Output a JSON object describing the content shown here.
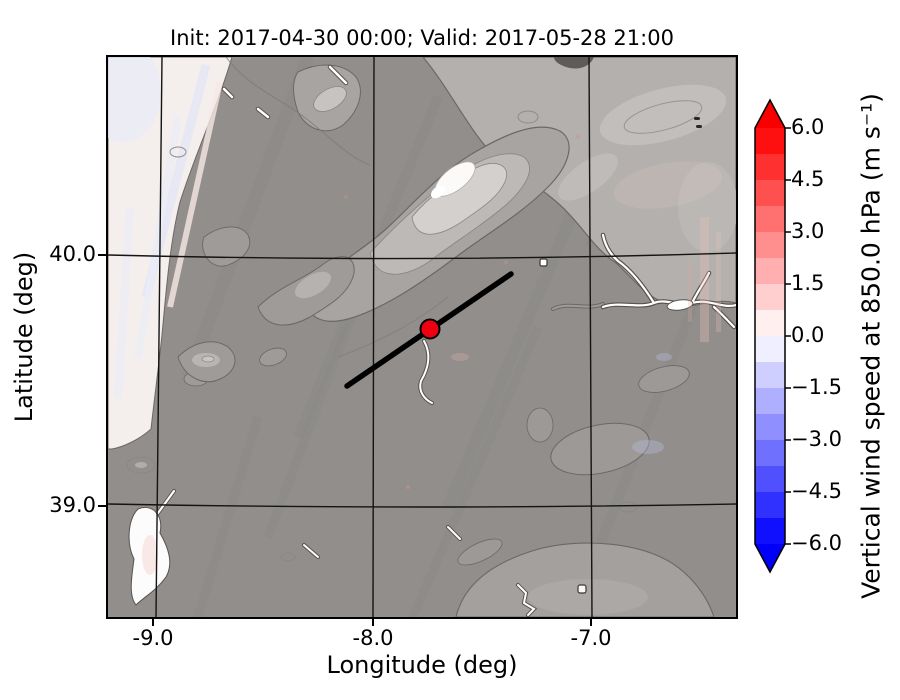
{
  "title": "Init: 2017-04-30 00:00; Valid: 2017-05-28 21:00",
  "axes": {
    "xlabel": "Longitude (deg)",
    "ylabel": "Latitude (deg)",
    "x_ticks": [
      "-9.0",
      "-8.0",
      "-7.0"
    ],
    "y_ticks": [
      "40.0",
      "39.0"
    ]
  },
  "colorbar": {
    "label": "Vertical wind speed at 850.0 hPa (m s⁻¹)",
    "ticks": [
      "6.0",
      "4.5",
      "3.0",
      "1.5",
      "0.0",
      "−1.5",
      "−3.0",
      "−4.5",
      "−6.0"
    ],
    "over_color": "#f80000",
    "under_color": "#0000f8",
    "segment_colors": [
      "#ff1010",
      "#ff3030",
      "#ff5050",
      "#ff7070",
      "#ff8f8f",
      "#ffafaf",
      "#ffcfcf",
      "#ffefef",
      "#efefff",
      "#cfcfff",
      "#afafff",
      "#8f8fff",
      "#7070ff",
      "#5050ff",
      "#3030ff",
      "#1010ff"
    ]
  },
  "chart_data": {
    "type": "heatmap",
    "subtype": "map contour overlay (matplotlib-style geographic plot)",
    "title": "Init: 2017-04-30 00:00; Valid: 2017-05-28 21:00",
    "xlabel": "Longitude (deg)",
    "ylabel": "Latitude (deg)",
    "xlim": [
      -9.21,
      -6.34
    ],
    "ylim": [
      38.55,
      40.79
    ],
    "x_tick_values": [
      -9.0,
      -8.0,
      -7.0
    ],
    "y_tick_values": [
      40.0,
      39.0
    ],
    "grid": true,
    "colorbar_label": "Vertical wind speed at 850.0 hPa (m s⁻¹)",
    "colorbar_tick_values": [
      6.0,
      4.5,
      3.0,
      1.5,
      0.0,
      -1.5,
      -3.0,
      -4.5,
      -6.0
    ],
    "colorbar_range": [
      -6.0,
      6.0
    ],
    "colorbar_step": 0.75,
    "colormap": "diverging blue-white-red with over/under arrows",
    "field_summary": "vertical wind speed near 0 m/s over the whole domain; faint pink/blue streaks over the Atlantic and along terrain",
    "basemap": "grayscale terrain of central Portugal / western Iberia: Atlantic coast on west edge, Serra da Estrela ridge (white peak) upper centre, lighter plateau in northeast, Tagus river valley and estuary in white",
    "marker": {
      "lon": -7.74,
      "lat": 39.7,
      "color": "#ee0011",
      "style": "filled circle with black edge"
    },
    "cross_section_line": {
      "lon_lat_start": [
        -8.13,
        39.48
      ],
      "lon_lat_end": [
        -7.37,
        39.92
      ],
      "color": "#000000"
    }
  },
  "colors": {
    "land_base": "#918e8b",
    "ocean": "#f4eeed",
    "contour_line": "#6b6865",
    "grid_line": "#141414",
    "background": "#ffffff"
  }
}
